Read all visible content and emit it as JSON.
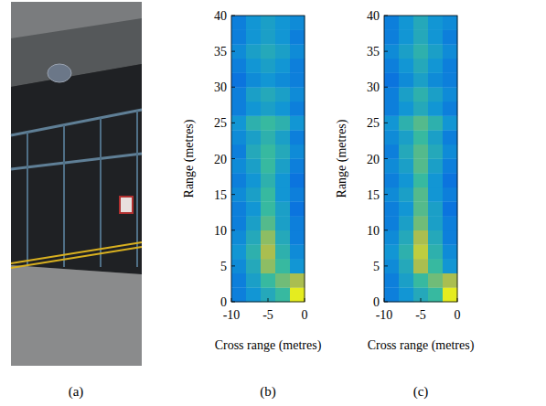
{
  "photo": {
    "label": "(a)"
  },
  "chart_data": [
    {
      "type": "heatmap",
      "label": "(b)",
      "x_label": "Cross range (metres)",
      "y_label": "Range (metres)",
      "xlim": [
        -10,
        0
      ],
      "ylim": [
        0,
        40
      ],
      "xticks": [
        -10,
        -5,
        0
      ],
      "yticks": [
        0,
        5,
        10,
        15,
        20,
        25,
        30,
        35,
        40
      ],
      "zlim": [
        0,
        1
      ],
      "cells": [
        [
          0.3,
          0.4,
          0.5,
          0.6,
          0.95
        ],
        [
          0.3,
          0.45,
          0.6,
          0.7,
          0.8
        ],
        [
          0.35,
          0.5,
          0.75,
          0.6,
          0.4
        ],
        [
          0.4,
          0.55,
          0.8,
          0.55,
          0.35
        ],
        [
          0.35,
          0.5,
          0.75,
          0.5,
          0.3
        ],
        [
          0.3,
          0.45,
          0.65,
          0.45,
          0.3
        ],
        [
          0.3,
          0.4,
          0.6,
          0.45,
          0.25
        ],
        [
          0.35,
          0.45,
          0.6,
          0.4,
          0.3
        ],
        [
          0.3,
          0.4,
          0.55,
          0.4,
          0.25
        ],
        [
          0.35,
          0.45,
          0.6,
          0.45,
          0.3
        ],
        [
          0.3,
          0.5,
          0.6,
          0.5,
          0.35
        ],
        [
          0.35,
          0.45,
          0.55,
          0.45,
          0.3
        ],
        [
          0.4,
          0.55,
          0.6,
          0.55,
          0.4
        ],
        [
          0.3,
          0.4,
          0.45,
          0.4,
          0.3
        ],
        [
          0.3,
          0.45,
          0.5,
          0.45,
          0.35
        ],
        [
          0.25,
          0.35,
          0.4,
          0.35,
          0.3
        ],
        [
          0.3,
          0.4,
          0.45,
          0.4,
          0.3
        ],
        [
          0.35,
          0.45,
          0.5,
          0.45,
          0.35
        ],
        [
          0.3,
          0.4,
          0.45,
          0.4,
          0.3
        ],
        [
          0.3,
          0.4,
          0.45,
          0.4,
          0.35
        ]
      ]
    },
    {
      "type": "heatmap",
      "label": "(c)",
      "x_label": "Cross range (metres)",
      "y_label": "Range (metres)",
      "xlim": [
        -10,
        0
      ],
      "ylim": [
        0,
        40
      ],
      "xticks": [
        -10,
        -5,
        0
      ],
      "yticks": [
        0,
        5,
        10,
        15,
        20,
        25,
        30,
        35,
        40
      ],
      "zlim": [
        0,
        1
      ],
      "cells": [
        [
          0.3,
          0.4,
          0.5,
          0.6,
          0.95
        ],
        [
          0.3,
          0.45,
          0.6,
          0.7,
          0.8
        ],
        [
          0.35,
          0.5,
          0.8,
          0.6,
          0.4
        ],
        [
          0.4,
          0.55,
          0.85,
          0.55,
          0.35
        ],
        [
          0.35,
          0.5,
          0.8,
          0.5,
          0.3
        ],
        [
          0.3,
          0.45,
          0.7,
          0.45,
          0.3
        ],
        [
          0.3,
          0.4,
          0.65,
          0.45,
          0.25
        ],
        [
          0.35,
          0.45,
          0.65,
          0.4,
          0.3
        ],
        [
          0.3,
          0.4,
          0.6,
          0.4,
          0.25
        ],
        [
          0.35,
          0.45,
          0.65,
          0.45,
          0.3
        ],
        [
          0.3,
          0.5,
          0.65,
          0.5,
          0.35
        ],
        [
          0.35,
          0.45,
          0.6,
          0.45,
          0.3
        ],
        [
          0.4,
          0.55,
          0.65,
          0.55,
          0.4
        ],
        [
          0.3,
          0.4,
          0.5,
          0.4,
          0.3
        ],
        [
          0.3,
          0.45,
          0.55,
          0.45,
          0.35
        ],
        [
          0.25,
          0.35,
          0.45,
          0.35,
          0.3
        ],
        [
          0.3,
          0.4,
          0.5,
          0.4,
          0.3
        ],
        [
          0.35,
          0.45,
          0.55,
          0.45,
          0.35
        ],
        [
          0.3,
          0.4,
          0.5,
          0.4,
          0.3
        ],
        [
          0.3,
          0.4,
          0.5,
          0.4,
          0.35
        ]
      ]
    }
  ]
}
